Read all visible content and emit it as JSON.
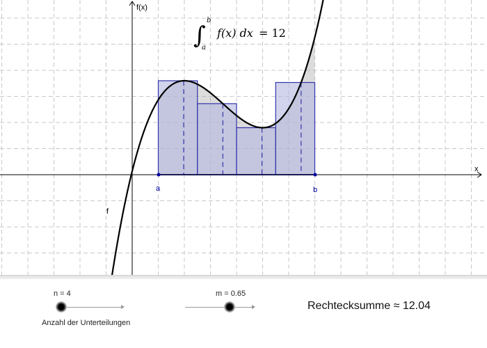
{
  "graph": {
    "axis_x_label": "x",
    "axis_y_label": "f(x)",
    "function_label": "f",
    "point_a_label": "a",
    "point_b_label": "b",
    "formula": {
      "integral_sign": "∫",
      "lower": "a",
      "upper": "b",
      "integrand": "f(x) dx",
      "equals": "= 12"
    },
    "colors": {
      "curve": "#000000",
      "rect_fill": "#b3b7e0",
      "rect_stroke": "#3333aa",
      "accent_blue": "#0000a0",
      "grid": "#c8c8c8"
    }
  },
  "sliders": {
    "n": {
      "label": "n = 4",
      "value": 4
    },
    "m": {
      "label": "m = 0.65",
      "value": 0.65
    }
  },
  "caption_n": "Anzahl der Unterteilungen",
  "result_text": "Rechtecksumme ≈ 12.04"
}
